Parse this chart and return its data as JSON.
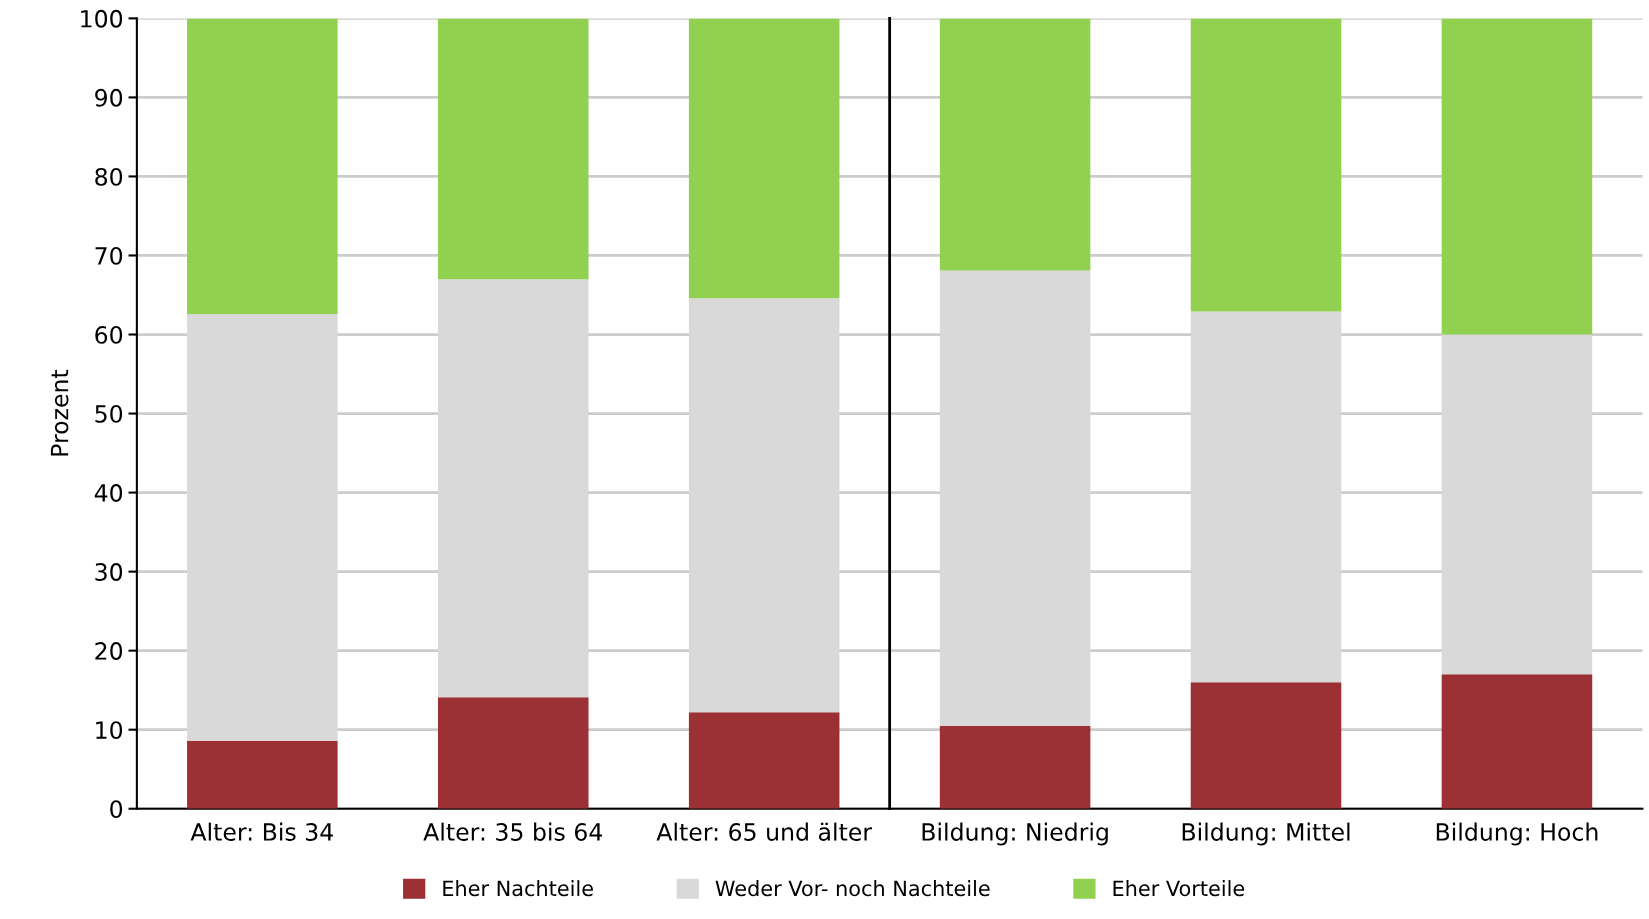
{
  "chart_data": [
    {
      "type": "bar",
      "stacked": true,
      "ylabel": "Prozent",
      "categories": [
        "Alter: Bis 34",
        "Alter: 35 bis 64",
        "Alter: 65 und älter"
      ],
      "series": [
        {
          "name": "Eher Nachteile",
          "color": "#9b3135",
          "values": [
            8.6,
            14.1,
            12.2
          ]
        },
        {
          "name": "Weder Vor- noch Nachteile",
          "color": "#d9d9d9",
          "values": [
            54.0,
            52.9,
            52.4
          ]
        },
        {
          "name": "Eher Vorteile",
          "color": "#92d050",
          "values": [
            37.4,
            33.0,
            35.4
          ]
        }
      ],
      "ylim": [
        0,
        100
      ],
      "yticks": [
        0,
        10,
        20,
        30,
        40,
        50,
        60,
        70,
        80,
        90,
        100
      ],
      "grid": "y",
      "legend": "bottom"
    },
    {
      "type": "bar",
      "stacked": true,
      "categories": [
        "Bildung: Niedrig",
        "Bildung: Mittel",
        "Bildung: Hoch"
      ],
      "series": [
        {
          "color": "#9b3135",
          "values": [
            10.5,
            16.0,
            17.0
          ]
        },
        {
          "color": "#d9d9d9",
          "values": [
            57.6,
            46.9,
            43.0
          ]
        },
        {
          "color": "#92d050",
          "values": [
            31.9,
            37.1,
            40.0
          ]
        }
      ],
      "ylim": [
        0,
        100
      ],
      "grid": "y",
      "tick_labels": "x"
    }
  ]
}
